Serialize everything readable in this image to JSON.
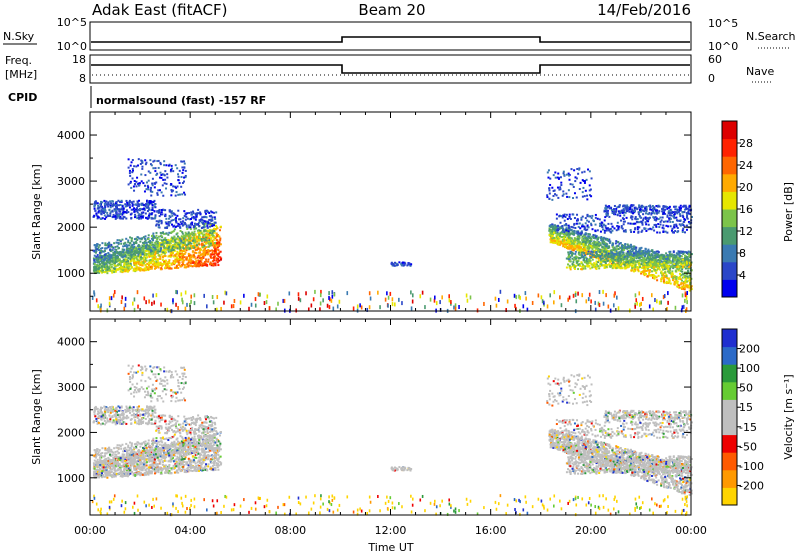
{
  "header": {
    "title": "Adak East (fitACF)",
    "beam": "Beam 20",
    "date": "14/Feb/2016"
  },
  "colors": {
    "power": [
      "#0000ee",
      "#2a46c8",
      "#3a7ab2",
      "#4a9a70",
      "#7cc44a",
      "#e6e600",
      "#ffaa00",
      "#ff6600",
      "#ff2200",
      "#dd0000"
    ],
    "velocity_pos": [
      "#1f2fd0",
      "#2b6ac8",
      "#2a9a3a",
      "#66cc33"
    ],
    "velocity_neutral": "#bfbfbf",
    "velocity_neg": [
      "#ffd400",
      "#ff9900",
      "#ff5a00",
      "#ee0000"
    ]
  },
  "panels": {
    "nsky": {
      "left_label": "N.Sky",
      "right_label": "N.Search",
      "ticks": [
        "10^5",
        "10^0"
      ],
      "right_ticks": [
        "10^5",
        "10^0"
      ]
    },
    "freq": {
      "left_label_1": "Freq.",
      "left_label_2": "[MHz]",
      "right_label": "Nave",
      "ticks": [
        "18",
        "8"
      ],
      "right_ticks": [
        "60",
        "0"
      ]
    },
    "cpid": {
      "label": "CPID",
      "text": "normalsound (fast) -157 RF"
    }
  },
  "colorbars": {
    "power": {
      "label": "Power [dB]",
      "ticks": [
        "28",
        "24",
        "20",
        "16",
        "12",
        "8",
        "4"
      ]
    },
    "velocity": {
      "label": "Velocity [m s⁻¹]",
      "ticks": [
        "200",
        "100",
        "50",
        "15",
        "-15",
        "-50",
        "-100",
        "-200"
      ]
    }
  },
  "chart_data": [
    {
      "type": "heatmap",
      "name": "power",
      "xlabel": "",
      "ylabel": "Slant Range [km]",
      "xlim": [
        0,
        24
      ],
      "ylim": [
        180,
        4500
      ],
      "yticks": [
        "1000",
        "2000",
        "3000",
        "4000"
      ],
      "yticks_values": [
        1000,
        2000,
        3000,
        4000
      ]
    },
    {
      "type": "heatmap",
      "name": "velocity",
      "xlabel": "Time UT",
      "ylabel": "Slant Range [km]",
      "xlim": [
        0,
        24
      ],
      "ylim": [
        180,
        4500
      ],
      "xticks": [
        "00:00",
        "04:00",
        "08:00",
        "12:00",
        "16:00",
        "20:00",
        "00:00"
      ],
      "xticks_values": [
        0,
        4,
        8,
        12,
        16,
        20,
        24
      ],
      "yticks": [
        "1000",
        "2000",
        "3000",
        "4000"
      ],
      "yticks_values": [
        1000,
        2000,
        3000,
        4000
      ]
    }
  ]
}
